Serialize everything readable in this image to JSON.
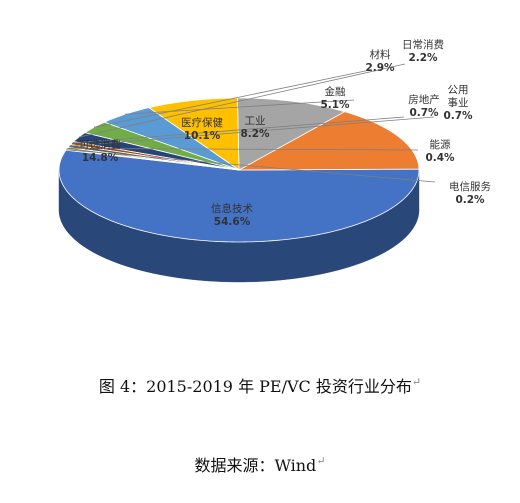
{
  "chart_data": {
    "type": "pie",
    "style": "3d",
    "slices": [
      {
        "label": "信息技术",
        "value": 54.6,
        "display": "54.6%",
        "color": "#4472C4"
      },
      {
        "label": "可选消费",
        "value": 14.8,
        "display": "14.8%",
        "color": "#ED7D31"
      },
      {
        "label": "医疗保健",
        "value": 10.1,
        "display": "10.1%",
        "color": "#A5A5A5"
      },
      {
        "label": "工业",
        "value": 8.2,
        "display": "8.2%",
        "color": "#FFC000"
      },
      {
        "label": "金融",
        "value": 5.1,
        "display": "5.1%",
        "color": "#5B9BD5"
      },
      {
        "label": "材料",
        "value": 2.9,
        "display": "2.9%",
        "color": "#70AD47"
      },
      {
        "label": "日常消费",
        "value": 2.2,
        "display": "2.2%",
        "color": "#264478"
      },
      {
        "label": "房地产",
        "value": 0.7,
        "display": "0.7%",
        "color": "#9E480E"
      },
      {
        "label": "公用\n事业",
        "value": 0.7,
        "display": "0.7%",
        "color": "#636363"
      },
      {
        "label": "能源",
        "value": 0.4,
        "display": "0.4%",
        "color": "#997300"
      },
      {
        "label": "电信服务",
        "value": 0.2,
        "display": "0.2%",
        "color": "#255E91"
      }
    ]
  },
  "caption": {
    "title": "图 4：2015-2019 年 PE/VC 投资行业分布",
    "source": "数据来源：Wind",
    "para_mark": "↵"
  }
}
